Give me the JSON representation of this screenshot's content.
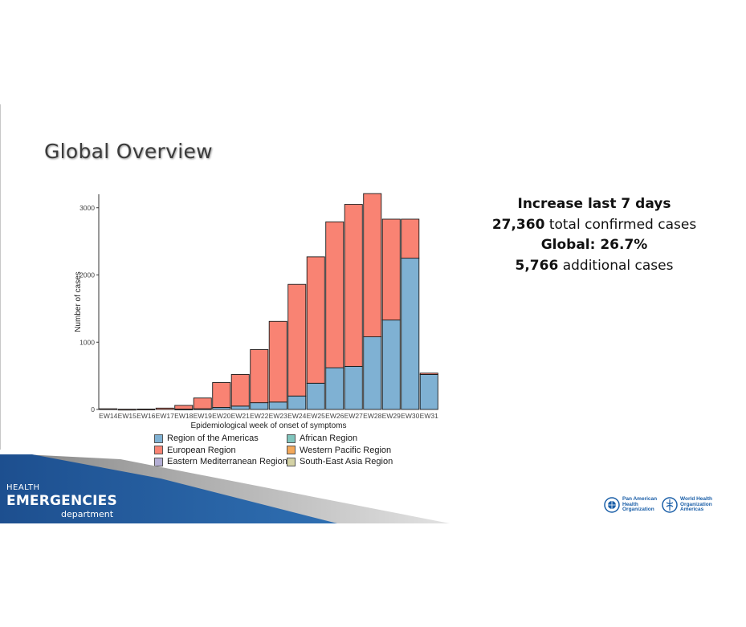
{
  "slide": {
    "title": "Global Overview"
  },
  "stats": {
    "line1": "Increase last 7 days",
    "line2_value": "27,360",
    "line2_rest": " total confirmed cases",
    "line3": "Global: 26.7%",
    "line4_value": "5,766",
    "line4_rest": " additional cases"
  },
  "chart_data": {
    "type": "bar",
    "stacked": true,
    "title": "",
    "xlabel": "Epidemiological week of onset of symptoms",
    "ylabel": "Number of cases",
    "ylim": [
      0,
      3200
    ],
    "yticks": [
      0,
      1000,
      2000,
      3000
    ],
    "grid": false,
    "legend_position": "bottom",
    "categories": [
      "EW14",
      "EW15",
      "EW16",
      "EW17",
      "EW18",
      "EW19",
      "EW20",
      "EW21",
      "EW22",
      "EW23",
      "EW24",
      "EW25",
      "EW26",
      "EW27",
      "EW28",
      "EW29",
      "EW30",
      "EW31"
    ],
    "series": [
      {
        "name": "Region of the Americas",
        "color": "#7fb1d3",
        "values": [
          0,
          0,
          0,
          0,
          5,
          10,
          30,
          50,
          100,
          110,
          200,
          390,
          620,
          640,
          1080,
          1330,
          2250,
          520
        ]
      },
      {
        "name": "European Region",
        "color": "#f98373",
        "values": [
          10,
          3,
          5,
          20,
          55,
          160,
          370,
          470,
          790,
          1200,
          1660,
          1880,
          2170,
          2410,
          2130,
          1500,
          580,
          20
        ]
      },
      {
        "name": "African Region",
        "color": "#80c5bd",
        "values": [
          0,
          0,
          0,
          0,
          0,
          0,
          0,
          0,
          0,
          0,
          0,
          0,
          0,
          0,
          0,
          0,
          0,
          0
        ]
      },
      {
        "name": "Western Pacific Region",
        "color": "#f3a85a",
        "values": [
          0,
          0,
          0,
          0,
          0,
          0,
          0,
          0,
          0,
          0,
          0,
          0,
          0,
          0,
          0,
          0,
          0,
          0
        ]
      },
      {
        "name": "Eastern Mediterranean Region",
        "color": "#b3aed4",
        "values": [
          0,
          0,
          0,
          0,
          0,
          0,
          0,
          0,
          0,
          0,
          0,
          0,
          0,
          0,
          0,
          0,
          0,
          0
        ]
      },
      {
        "name": "South-East Asia Region",
        "color": "#d4d2a5",
        "values": [
          0,
          0,
          0,
          0,
          0,
          0,
          0,
          0,
          0,
          0,
          0,
          0,
          0,
          0,
          0,
          0,
          0,
          0
        ]
      }
    ]
  },
  "banner": {
    "line1": "HEALTH",
    "line2": "EMERGENCIES",
    "line3": "department"
  },
  "logos": {
    "paho_line1": "Pan American",
    "paho_line2": "Health",
    "paho_line3": "Organization",
    "who_line1": "World Health",
    "who_line2": "Organization",
    "who_line3": "Americas"
  }
}
